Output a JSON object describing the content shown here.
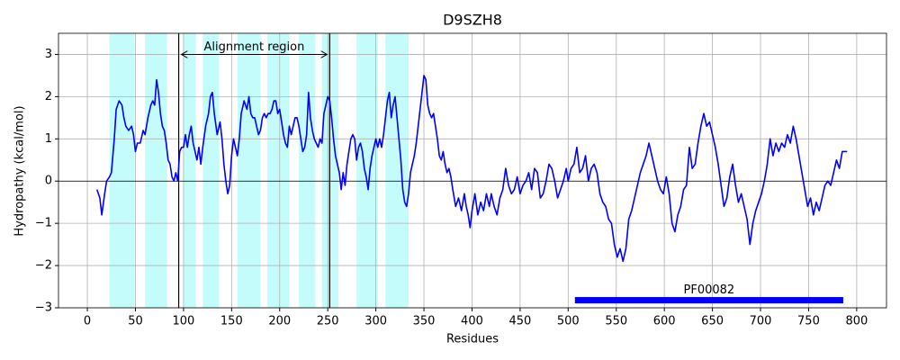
{
  "chart_data": {
    "type": "line",
    "title": "D9SZH8",
    "x_label": "Residues",
    "y_label": "Hydropathy (kcal/mol)",
    "color": "#0000ff",
    "grid": true,
    "zero_line": 0,
    "xlim": [
      -30,
      831
    ],
    "ylim": [
      -3,
      3.5
    ],
    "xticks": [
      0,
      50,
      100,
      150,
      200,
      250,
      300,
      350,
      400,
      450,
      500,
      550,
      600,
      650,
      700,
      750,
      800
    ],
    "yticks": [
      {
        "value": -3,
        "label": "−3"
      },
      {
        "value": -2,
        "label": "−2"
      },
      {
        "value": -1,
        "label": "−1"
      },
      0,
      1,
      2,
      3
    ],
    "shaded_regions": [
      [
        23,
        49
      ],
      [
        60,
        83
      ],
      [
        100,
        113
      ],
      [
        120,
        137
      ],
      [
        156,
        180
      ],
      [
        187,
        210
      ],
      [
        220,
        237
      ],
      [
        244,
        261
      ],
      [
        280,
        302
      ],
      [
        310,
        334
      ]
    ],
    "shade_color": "#c4fcfc",
    "alignment": {
      "label": "Alignment region",
      "start": 95,
      "end": 252,
      "y": 3
    },
    "domain": {
      "label": "PF00082",
      "start": 507,
      "end": 786,
      "y": -2.82
    },
    "x": [
      10,
      13,
      15,
      18,
      20,
      23,
      25,
      28,
      30,
      33,
      36,
      38,
      40,
      43,
      46,
      48,
      50,
      52,
      55,
      58,
      60,
      63,
      66,
      68,
      70,
      72,
      74,
      76,
      78,
      80,
      82,
      84,
      86,
      88,
      90,
      92,
      94,
      96,
      98,
      100,
      102,
      104,
      106,
      108,
      110,
      112,
      114,
      116,
      118,
      120,
      123,
      126,
      128,
      130,
      132,
      135,
      138,
      140,
      142,
      144,
      146,
      148,
      150,
      152,
      154,
      156,
      158,
      160,
      163,
      166,
      168,
      170,
      172,
      174,
      176,
      178,
      180,
      182,
      184,
      186,
      188,
      190,
      192,
      194,
      196,
      198,
      200,
      202,
      204,
      206,
      208,
      210,
      212,
      214,
      216,
      218,
      220,
      222,
      224,
      226,
      228,
      230,
      232,
      234,
      236,
      238,
      240,
      242,
      244,
      246,
      248,
      250,
      252,
      254,
      256,
      258,
      260,
      262,
      264,
      266,
      268,
      270,
      272,
      274,
      276,
      278,
      280,
      282,
      284,
      286,
      288,
      290,
      292,
      294,
      296,
      298,
      300,
      302,
      304,
      306,
      308,
      310,
      312,
      314,
      316,
      318,
      320,
      322,
      324,
      326,
      328,
      330,
      332,
      334,
      336,
      338,
      340,
      342,
      344,
      346,
      348,
      350,
      352,
      354,
      356,
      358,
      360,
      362,
      364,
      366,
      368,
      370,
      372,
      374,
      376,
      378,
      380,
      383,
      386,
      389,
      392,
      394,
      396,
      398,
      400,
      403,
      406,
      409,
      412,
      415,
      418,
      420,
      423,
      426,
      429,
      432,
      435,
      438,
      441,
      444,
      447,
      450,
      453,
      456,
      459,
      462,
      465,
      468,
      471,
      474,
      477,
      480,
      483,
      486,
      489,
      492,
      495,
      498,
      500,
      503,
      506,
      509,
      512,
      515,
      518,
      521,
      524,
      527,
      530,
      533,
      536,
      539,
      542,
      545,
      548,
      551,
      554,
      557,
      560,
      563,
      566,
      569,
      572,
      575,
      578,
      581,
      584,
      587,
      590,
      593,
      596,
      599,
      602,
      605,
      608,
      611,
      614,
      617,
      620,
      623,
      626,
      629,
      632,
      635,
      638,
      641,
      644,
      647,
      650,
      653,
      656,
      659,
      662,
      665,
      668,
      671,
      674,
      677,
      680,
      683,
      686,
      689,
      692,
      695,
      698,
      701,
      704,
      707,
      710,
      713,
      716,
      719,
      722,
      725,
      728,
      731,
      734,
      737,
      740,
      743,
      746,
      749,
      752,
      755,
      758,
      761,
      764,
      767,
      770,
      773,
      776,
      779,
      782,
      785,
      788,
      790
    ],
    "values": [
      -0.2,
      -0.4,
      -0.8,
      -0.3,
      0.0,
      0.1,
      0.2,
      1.0,
      1.7,
      1.9,
      1.8,
      1.5,
      1.3,
      1.2,
      1.3,
      1.1,
      0.7,
      0.9,
      0.9,
      1.2,
      1.1,
      1.5,
      1.8,
      1.9,
      1.8,
      2.4,
      2.1,
      1.6,
      1.3,
      1.2,
      0.9,
      0.5,
      0.4,
      0.1,
      0.0,
      0.2,
      0.0,
      0.7,
      0.8,
      0.8,
      1.1,
      0.8,
      1.1,
      1.3,
      0.9,
      0.7,
      0.5,
      0.8,
      0.4,
      0.8,
      1.3,
      1.6,
      2.0,
      2.1,
      1.6,
      1.1,
      1.4,
      1.0,
      0.4,
      0.0,
      -0.3,
      -0.1,
      0.6,
      1.0,
      0.8,
      0.6,
      1.0,
      1.6,
      1.9,
      1.7,
      2.0,
      1.6,
      1.5,
      1.5,
      1.3,
      1.1,
      1.2,
      1.5,
      1.6,
      1.5,
      1.6,
      1.6,
      1.7,
      1.9,
      1.9,
      1.6,
      1.7,
      1.4,
      1.1,
      0.9,
      0.8,
      1.3,
      1.1,
      1.3,
      1.5,
      1.5,
      1.3,
      1.0,
      0.7,
      0.8,
      1.1,
      2.1,
      1.5,
      1.2,
      1.0,
      0.9,
      0.8,
      1.0,
      0.9,
      1.6,
      1.8,
      2.0,
      1.9,
      1.5,
      1.0,
      0.6,
      0.4,
      0.2,
      -0.2,
      0.2,
      -0.1,
      0.4,
      0.7,
      1.0,
      1.1,
      1.0,
      0.5,
      0.8,
      0.9,
      0.7,
      0.3,
      0.1,
      -0.2,
      0.3,
      0.6,
      0.8,
      1.0,
      0.8,
      1.0,
      0.8,
      1.1,
      1.5,
      1.9,
      2.1,
      1.5,
      1.8,
      2.0,
      1.5,
      1.0,
      0.5,
      -0.2,
      -0.5,
      -0.6,
      -0.3,
      0.2,
      0.4,
      0.6,
      0.9,
      1.3,
      1.7,
      2.1,
      2.5,
      2.4,
      1.8,
      1.6,
      1.5,
      1.6,
      1.3,
      1.0,
      0.6,
      0.5,
      0.7,
      0.4,
      0.2,
      0.3,
      0.1,
      -0.2,
      -0.6,
      -0.4,
      -0.7,
      -0.3,
      -0.6,
      -0.8,
      -1.1,
      -0.7,
      -0.3,
      -0.8,
      -0.5,
      -0.7,
      -0.3,
      -0.6,
      -0.3,
      -0.6,
      -0.8,
      -0.4,
      -0.2,
      0.3,
      -0.1,
      -0.3,
      -0.2,
      0.1,
      -0.3,
      -0.1,
      0.0,
      0.2,
      -0.2,
      0.3,
      0.2,
      -0.4,
      -0.3,
      0.0,
      0.4,
      0.3,
      0.0,
      -0.4,
      -0.2,
      0.0,
      0.3,
      0.0,
      0.3,
      0.4,
      0.8,
      0.2,
      0.3,
      0.6,
      0.0,
      0.3,
      0.4,
      0.2,
      -0.3,
      -0.5,
      -0.6,
      -0.9,
      -1.0,
      -1.5,
      -1.8,
      -1.6,
      -1.9,
      -1.6,
      -0.9,
      -0.7,
      -0.4,
      -0.1,
      0.2,
      0.4,
      0.6,
      0.9,
      0.6,
      0.3,
      0.0,
      -0.2,
      -0.3,
      0.1,
      -0.3,
      -1.0,
      -1.2,
      -0.8,
      -0.6,
      -0.2,
      -0.1,
      0.8,
      0.3,
      0.4,
      0.9,
      1.3,
      1.6,
      1.3,
      1.4,
      1.1,
      0.8,
      0.4,
      -0.1,
      -0.6,
      -0.4,
      0.1,
      0.4,
      -0.1,
      -0.5,
      -0.3,
      -0.6,
      -0.9,
      -1.5,
      -1.0,
      -0.7,
      -0.5,
      -0.3,
      0.0,
      0.4,
      1.0,
      0.6,
      0.9,
      0.7,
      0.9,
      0.8,
      1.1,
      0.9,
      1.3,
      1.0,
      0.6,
      0.2,
      -0.2,
      -0.6,
      -0.4,
      -0.8,
      -0.5,
      -0.7,
      -0.4,
      -0.1,
      0.0,
      -0.1,
      0.2,
      0.5,
      0.3,
      0.7,
      0.7,
      0.7
    ]
  }
}
